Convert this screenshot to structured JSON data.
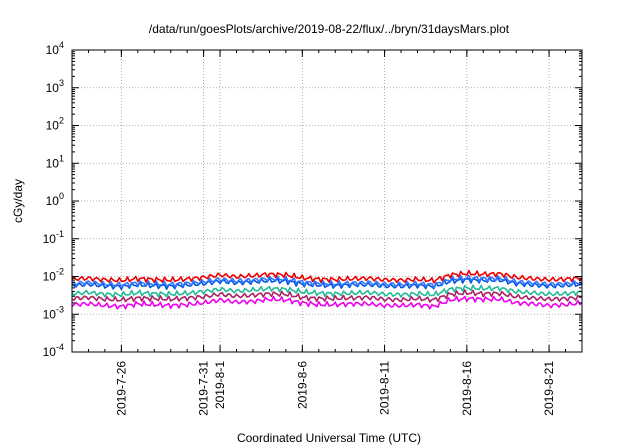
{
  "chart_data": {
    "type": "line",
    "title": "/data/run/goesPlots/archive/2019-08-22/flux/../bryn/31daysMars.plot",
    "xlabel": "Coordinated Universal Time (UTC)",
    "ylabel": "cGy/day",
    "y_scale": "log",
    "ylim": [
      0.0001,
      10000
    ],
    "y_ticks": [
      {
        "base": "10",
        "exp": "-4",
        "value": 0.0001
      },
      {
        "base": "10",
        "exp": "-3",
        "value": 0.001
      },
      {
        "base": "10",
        "exp": "-2",
        "value": 0.01
      },
      {
        "base": "10",
        "exp": "-1",
        "value": 0.1
      },
      {
        "base": "10",
        "exp": "0",
        "value": 1
      },
      {
        "base": "10",
        "exp": "1",
        "value": 10
      },
      {
        "base": "10",
        "exp": "2",
        "value": 100
      },
      {
        "base": "10",
        "exp": "3",
        "value": 1000
      },
      {
        "base": "10",
        "exp": "4",
        "value": 10000
      }
    ],
    "xlim": [
      "2019-07-23",
      "2019-08-23"
    ],
    "x_ticks": [
      "2019-7-26",
      "2019-7-31",
      "2019-8-1",
      "2019-8-6",
      "2019-8-11",
      "2019-8-16",
      "2019-8-21"
    ],
    "x_tick_dates": [
      "2019-07-26",
      "2019-07-31",
      "2019-08-01",
      "2019-08-06",
      "2019-08-11",
      "2019-08-16",
      "2019-08-21"
    ],
    "x_dates": [
      "2019-07-23",
      "2019-07-24",
      "2019-07-25",
      "2019-07-26",
      "2019-07-27",
      "2019-07-28",
      "2019-07-29",
      "2019-07-30",
      "2019-07-31",
      "2019-08-01",
      "2019-08-02",
      "2019-08-03",
      "2019-08-04",
      "2019-08-05",
      "2019-08-06",
      "2019-08-07",
      "2019-08-08",
      "2019-08-09",
      "2019-08-10",
      "2019-08-11",
      "2019-08-12",
      "2019-08-13",
      "2019-08-14",
      "2019-08-15",
      "2019-08-16",
      "2019-08-17",
      "2019-08-18",
      "2019-08-19",
      "2019-08-20",
      "2019-08-21",
      "2019-08-22",
      "2019-08-23"
    ],
    "grid": true,
    "series": [
      {
        "color": "#ee0000",
        "values": [
          0.0085,
          0.009,
          0.0082,
          0.0078,
          0.0088,
          0.0083,
          0.008,
          0.0086,
          0.0095,
          0.011,
          0.0098,
          0.0105,
          0.0115,
          0.011,
          0.0092,
          0.0085,
          0.0083,
          0.0087,
          0.009,
          0.0082,
          0.008,
          0.0084,
          0.0078,
          0.011,
          0.012,
          0.0115,
          0.0118,
          0.0095,
          0.0088,
          0.0082,
          0.0085,
          0.0092
        ]
      },
      {
        "color": "#3377ff",
        "values": [
          0.0065,
          0.007,
          0.0063,
          0.006,
          0.0068,
          0.0064,
          0.0062,
          0.0066,
          0.0073,
          0.0085,
          0.0076,
          0.0081,
          0.0088,
          0.0085,
          0.0071,
          0.0066,
          0.0064,
          0.0067,
          0.0069,
          0.0063,
          0.0062,
          0.0065,
          0.006,
          0.0085,
          0.0092,
          0.0088,
          0.0091,
          0.0073,
          0.0068,
          0.0063,
          0.0065,
          0.0071
        ]
      },
      {
        "color": "#0055dd",
        "values": [
          0.0058,
          0.0062,
          0.0056,
          0.0054,
          0.006,
          0.0057,
          0.0055,
          0.0059,
          0.0065,
          0.0075,
          0.0068,
          0.0072,
          0.0078,
          0.0075,
          0.0063,
          0.0059,
          0.0057,
          0.006,
          0.0061,
          0.0056,
          0.0055,
          0.0058,
          0.0054,
          0.0075,
          0.0082,
          0.0078,
          0.0081,
          0.0065,
          0.006,
          0.0056,
          0.0058,
          0.0063
        ]
      },
      {
        "color": "#22bb99",
        "values": [
          0.0035,
          0.0038,
          0.0034,
          0.0033,
          0.0037,
          0.0035,
          0.0034,
          0.0036,
          0.004,
          0.0046,
          0.0041,
          0.0044,
          0.0048,
          0.0046,
          0.0039,
          0.0036,
          0.0035,
          0.0036,
          0.0038,
          0.0034,
          0.0033,
          0.0035,
          0.0033,
          0.0046,
          0.005,
          0.0048,
          0.0049,
          0.004,
          0.0037,
          0.0034,
          0.0035,
          0.0039
        ]
      },
      {
        "color": "#aa2266",
        "values": [
          0.0026,
          0.0028,
          0.0025,
          0.0024,
          0.0027,
          0.0026,
          0.0025,
          0.0027,
          0.0029,
          0.0034,
          0.003,
          0.0032,
          0.0035,
          0.0034,
          0.0028,
          0.0026,
          0.0026,
          0.0027,
          0.0028,
          0.0025,
          0.0024,
          0.0026,
          0.0024,
          0.0034,
          0.0037,
          0.0035,
          0.0036,
          0.0029,
          0.0027,
          0.0025,
          0.0026,
          0.0028
        ]
      },
      {
        "color": "#ee00ee",
        "values": [
          0.0018,
          0.0019,
          0.0017,
          0.0016,
          0.0019,
          0.0018,
          0.0017,
          0.0018,
          0.002,
          0.0024,
          0.0021,
          0.0022,
          0.0025,
          0.0024,
          0.002,
          0.0018,
          0.0018,
          0.0019,
          0.0019,
          0.0017,
          0.0017,
          0.0018,
          0.0016,
          0.0024,
          0.0026,
          0.0025,
          0.0025,
          0.002,
          0.0019,
          0.0017,
          0.0018,
          0.002
        ]
      }
    ]
  }
}
